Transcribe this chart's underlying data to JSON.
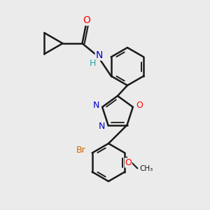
{
  "background_color": "#ebebeb",
  "bond_color": "#1a1a1a",
  "atom_colors": {
    "O": "#ff0000",
    "N": "#0000cc",
    "Br": "#cc6600",
    "H": "#2fa0a0",
    "C": "#1a1a1a"
  },
  "figsize": [
    3.0,
    3.0
  ],
  "dpi": 100
}
